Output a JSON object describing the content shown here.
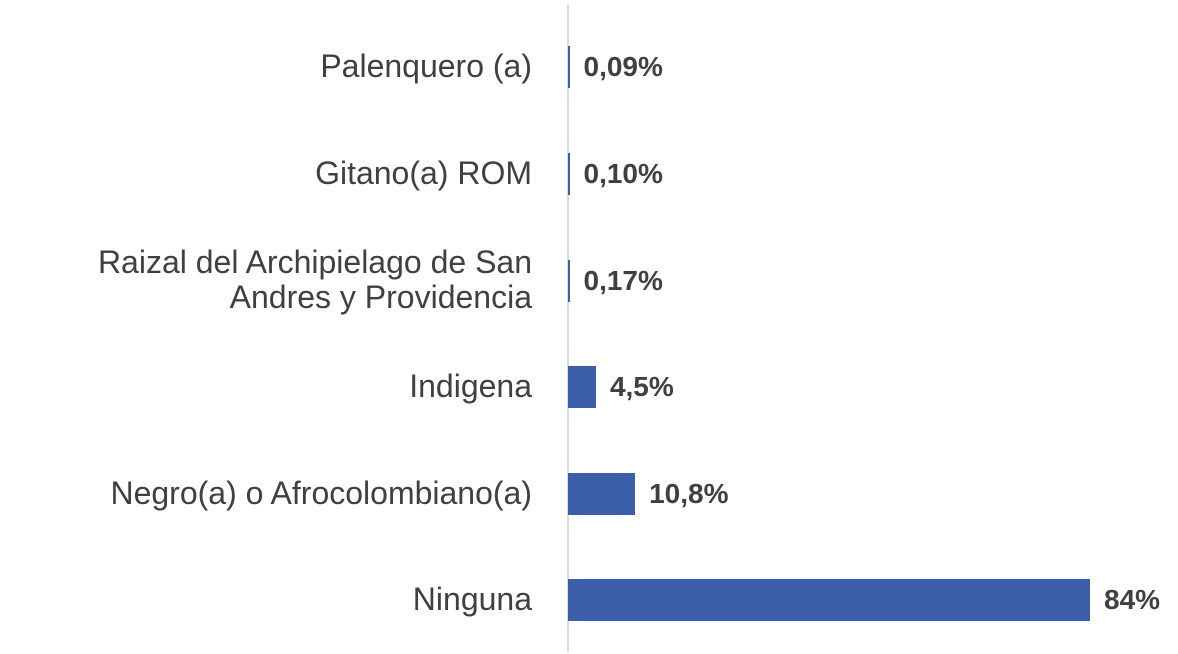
{
  "chart_data": {
    "type": "barh",
    "categories": [
      "Palenquero (a)",
      "Gitano(a) ROM",
      "Raizal del Archipielago de San Andres y Providencia",
      "Indigena",
      "Negro(a) o Afrocolombiano(a)",
      "Ninguna"
    ],
    "values": [
      0.09,
      0.1,
      0.17,
      4.5,
      10.8,
      84
    ],
    "value_labels": [
      "0,09%",
      "0,10%",
      "0,17%",
      "4,5%",
      "10,8%",
      "84%"
    ],
    "color": "#3b5ea8",
    "xlim": [
      0,
      84
    ]
  }
}
